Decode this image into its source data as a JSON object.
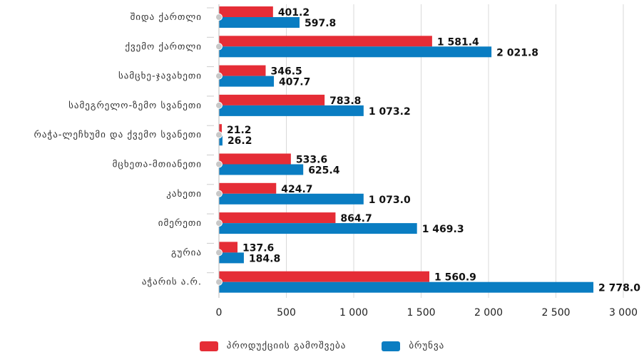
{
  "chart_data": {
    "type": "bar",
    "orientation": "horizontal",
    "categories": [
      "შიდა ქართლი",
      "ქვემო ქართლი",
      "სამცხე-ჯავახეთი",
      "სამეგრელო-ზემო სვანეთი",
      "რაჭა-ლეჩხუმი და ქვემო სვანეთი",
      "მცხეთა-მთიანეთი",
      "კახეთი",
      "იმერეთი",
      "გურია",
      "აჭარის ა.რ."
    ],
    "series": [
      {
        "name": "პროდუქციის გამოშვება",
        "color": "#e52d36",
        "values": [
          401.2,
          1581.4,
          346.5,
          783.8,
          21.2,
          533.6,
          424.7,
          864.7,
          137.6,
          1560.9
        ],
        "value_labels": [
          "401.2",
          "1 581.4",
          "346.5",
          "783.8",
          "21.2",
          "533.6",
          "424.7",
          "864.7",
          "137.6",
          "1 560.9"
        ]
      },
      {
        "name": "ბრუნვა",
        "color": "#0a7dc2",
        "values": [
          597.8,
          2021.8,
          407.7,
          1073.2,
          26.2,
          625.4,
          1073.0,
          1469.3,
          184.8,
          2778.0
        ],
        "value_labels": [
          "597.8",
          "2 021.8",
          "407.7",
          "1 073.2",
          "26.2",
          "625.4",
          "1 073.0",
          "1 469.3",
          "184.8",
          "2 778.0"
        ]
      }
    ],
    "xlim": [
      0,
      3000
    ],
    "x_ticks": [
      0,
      500,
      1000,
      1500,
      2000,
      2500,
      3000
    ],
    "x_tick_labels": [
      "0",
      "500",
      "1 000",
      "1 500",
      "2 000",
      "2 500",
      "3 000"
    ],
    "grid": true,
    "legend_position": "bottom"
  }
}
